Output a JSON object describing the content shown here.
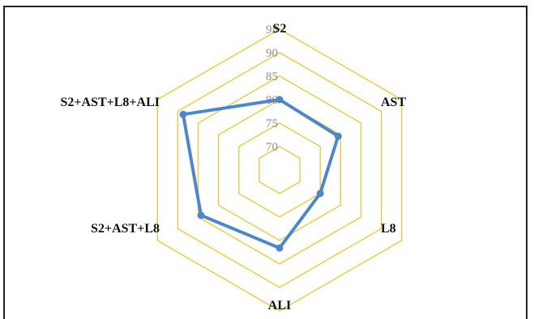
{
  "chart_data": {
    "type": "radar",
    "axes": [
      "S2",
      "AST",
      "L8",
      "ALI",
      "S2+AST+L8",
      "S2+AST+L8+ALI"
    ],
    "ticks": [
      70,
      75,
      80,
      85,
      90,
      95
    ],
    "range": [
      65,
      95
    ],
    "series": [
      {
        "values": [
          80.0,
          79.4,
          75.0,
          81.6,
          84.3,
          88.7
        ]
      }
    ],
    "grid_color": "#e6c94a",
    "series_color": "#4f86c6",
    "border_color": "#222222"
  }
}
